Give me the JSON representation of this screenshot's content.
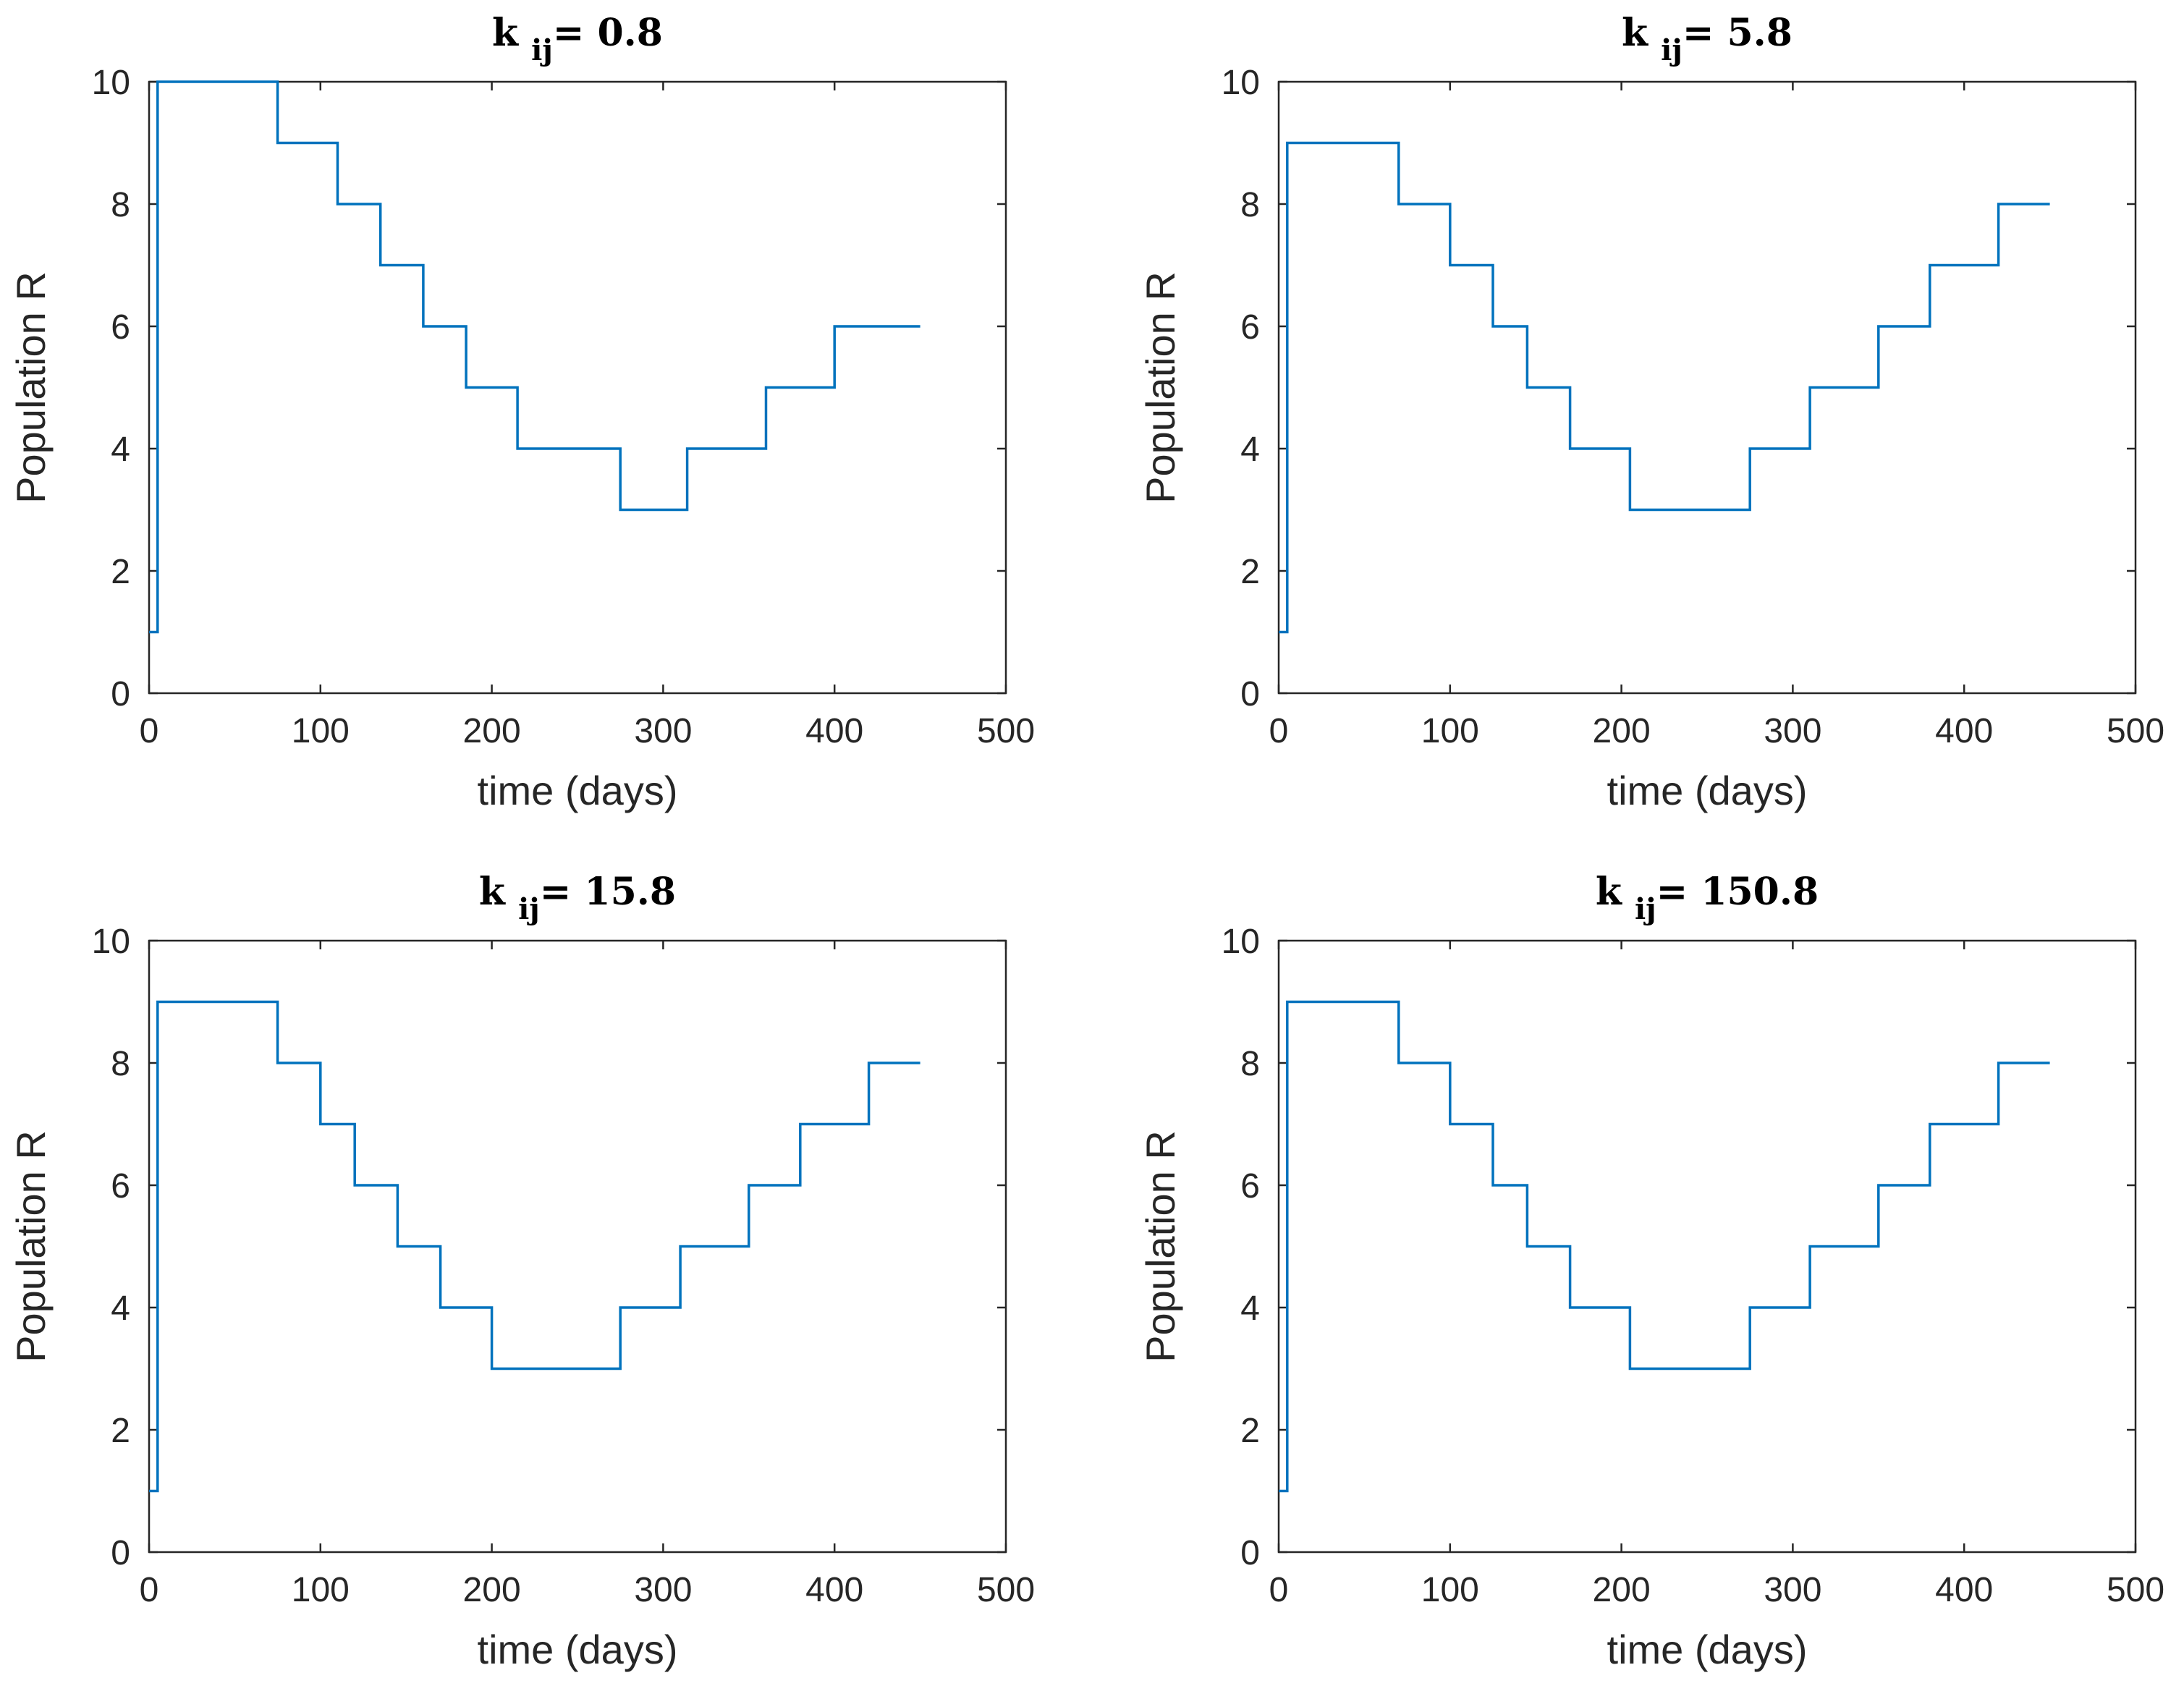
{
  "colors": {
    "series": "#0072BD",
    "axis": "#262626"
  },
  "chart_data": [
    {
      "type": "line",
      "step": true,
      "title_main": "k",
      "title_sub": "ij",
      "title_value": "= 0.8",
      "xlabel": "time (days)",
      "ylabel": "Population R",
      "xlim": [
        0,
        500
      ],
      "ylim": [
        0,
        10
      ],
      "xticks": [
        "0",
        "100",
        "200",
        "300",
        "400",
        "500"
      ],
      "yticks": [
        "0",
        "2",
        "4",
        "6",
        "8",
        "10"
      ],
      "series": [
        {
          "name": "R",
          "x": [
            0,
            5,
            5,
            75,
            75,
            110,
            110,
            135,
            135,
            160,
            160,
            185,
            185,
            215,
            215,
            275,
            275,
            314,
            314,
            360,
            360,
            400,
            400,
            450
          ],
          "y": [
            1,
            1,
            10,
            10,
            9,
            9,
            8,
            8,
            7,
            7,
            6,
            6,
            5,
            5,
            4,
            4,
            3,
            3,
            4,
            4,
            5,
            5,
            6,
            6
          ]
        }
      ]
    },
    {
      "type": "line",
      "step": true,
      "title_main": "k",
      "title_sub": "ij",
      "title_value": "= 5.8",
      "xlabel": "time (days)",
      "ylabel": "Population R",
      "xlim": [
        0,
        500
      ],
      "ylim": [
        0,
        10
      ],
      "xticks": [
        "0",
        "100",
        "200",
        "300",
        "400",
        "500"
      ],
      "yticks": [
        "0",
        "2",
        "4",
        "6",
        "8",
        "10"
      ],
      "series": [
        {
          "name": "R",
          "x": [
            0,
            5,
            5,
            70,
            70,
            100,
            100,
            125,
            125,
            145,
            145,
            170,
            170,
            205,
            205,
            275,
            275,
            310,
            310,
            350,
            350,
            380,
            380,
            420,
            420,
            450
          ],
          "y": [
            1,
            1,
            9,
            9,
            8,
            8,
            7,
            7,
            6,
            6,
            5,
            5,
            4,
            4,
            3,
            3,
            4,
            4,
            5,
            5,
            6,
            6,
            7,
            7,
            8,
            8
          ]
        }
      ]
    },
    {
      "type": "line",
      "step": true,
      "title_main": "k",
      "title_sub": "ij",
      "title_value": "= 15.8",
      "xlabel": "time (days)",
      "ylabel": "Population R",
      "xlim": [
        0,
        500
      ],
      "ylim": [
        0,
        10
      ],
      "xticks": [
        "0",
        "100",
        "200",
        "300",
        "400",
        "500"
      ],
      "yticks": [
        "0",
        "2",
        "4",
        "6",
        "8",
        "10"
      ],
      "series": [
        {
          "name": "R",
          "x": [
            0,
            5,
            5,
            75,
            75,
            100,
            100,
            120,
            120,
            145,
            145,
            170,
            170,
            200,
            200,
            275,
            275,
            310,
            310,
            350,
            350,
            380,
            380,
            420,
            420,
            450
          ],
          "y": [
            1,
            1,
            9,
            9,
            8,
            8,
            7,
            7,
            6,
            6,
            5,
            5,
            4,
            4,
            3,
            3,
            4,
            4,
            5,
            5,
            6,
            6,
            7,
            7,
            8,
            8
          ]
        }
      ]
    },
    {
      "type": "line",
      "step": true,
      "title_main": "k",
      "title_sub": "ij",
      "title_value": "= 150.8",
      "xlabel": "time (days)",
      "ylabel": "Population R",
      "xlim": [
        0,
        500
      ],
      "ylim": [
        0,
        10
      ],
      "xticks": [
        "0",
        "100",
        "200",
        "300",
        "400",
        "500"
      ],
      "yticks": [
        "0",
        "2",
        "4",
        "6",
        "8",
        "10"
      ],
      "series": [
        {
          "name": "R",
          "x": [
            0,
            5,
            5,
            70,
            70,
            100,
            100,
            125,
            125,
            145,
            145,
            170,
            170,
            205,
            205,
            275,
            275,
            310,
            310,
            350,
            350,
            380,
            380,
            420,
            420,
            450
          ],
          "y": [
            1,
            1,
            9,
            9,
            8,
            8,
            7,
            7,
            6,
            6,
            5,
            5,
            4,
            4,
            3,
            3,
            4,
            4,
            5,
            5,
            6,
            6,
            7,
            7,
            8,
            8
          ]
        }
      ]
    }
  ]
}
